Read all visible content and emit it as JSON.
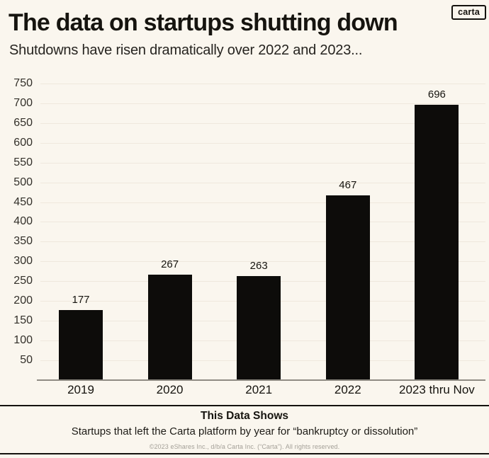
{
  "page": {
    "background_color": "#faf6ee",
    "text_color": "#16140f"
  },
  "logo_badge": {
    "label": "carta"
  },
  "header": {
    "title": "The data on startups shutting down",
    "subtitle": "Shutdowns have risen dramatically over 2022 and 2023..."
  },
  "chart_data": {
    "type": "bar",
    "title": "The data on startups shutting down",
    "categories": [
      "2019",
      "2020",
      "2021",
      "2022",
      "2023 thru Nov"
    ],
    "values": [
      177,
      267,
      263,
      467,
      696
    ],
    "bar_labels": [
      "177",
      "267",
      "263",
      "467",
      "696"
    ],
    "xlabel": "",
    "ylabel": "",
    "ylim": [
      0,
      750
    ],
    "ytick_step": 50,
    "grid": "horizontal",
    "legend": "none",
    "bar_color": "#0d0c0a",
    "gridline_color": "#efe8dd",
    "axis_line_color": "#8f8b83"
  },
  "footer": {
    "heading": "This Data Shows",
    "description": "Startups that left the Carta platform by year for “bankruptcy or dissolution”",
    "copyright": "©2023 eShares Inc., d/b/a Carta Inc. (“Carta”). All rights reserved."
  }
}
